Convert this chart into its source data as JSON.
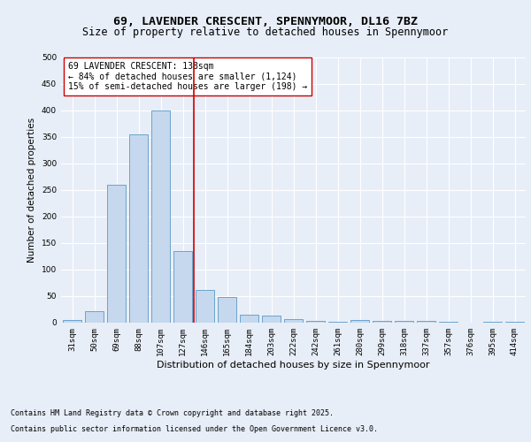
{
  "title_line1": "69, LAVENDER CRESCENT, SPENNYMOOR, DL16 7BZ",
  "title_line2": "Size of property relative to detached houses in Spennymoor",
  "xlabel": "Distribution of detached houses by size in Spennymoor",
  "ylabel": "Number of detached properties",
  "categories": [
    "31sqm",
    "50sqm",
    "69sqm",
    "88sqm",
    "107sqm",
    "127sqm",
    "146sqm",
    "165sqm",
    "184sqm",
    "203sqm",
    "222sqm",
    "242sqm",
    "261sqm",
    "280sqm",
    "299sqm",
    "318sqm",
    "337sqm",
    "357sqm",
    "376sqm",
    "395sqm",
    "414sqm"
  ],
  "values": [
    5,
    22,
    260,
    355,
    400,
    135,
    62,
    48,
    15,
    13,
    7,
    4,
    2,
    5,
    4,
    4,
    4,
    1,
    0,
    1,
    2
  ],
  "bar_color": "#c5d8ed",
  "bar_edge_color": "#5a9ac8",
  "vline_x": 5.5,
  "vline_color": "#cc0000",
  "annotation_text": "69 LAVENDER CRESCENT: 138sqm\n← 84% of detached houses are smaller (1,124)\n15% of semi-detached houses are larger (198) →",
  "annotation_box_color": "#ffffff",
  "annotation_box_edge": "#cc0000",
  "ylim": [
    0,
    500
  ],
  "yticks": [
    0,
    50,
    100,
    150,
    200,
    250,
    300,
    350,
    400,
    450,
    500
  ],
  "bg_color": "#e8eef7",
  "plot_bg_color": "#e8eef7",
  "footer_line1": "Contains HM Land Registry data © Crown copyright and database right 2025.",
  "footer_line2": "Contains public sector information licensed under the Open Government Licence v3.0.",
  "title_fontsize": 9.5,
  "subtitle_fontsize": 8.5,
  "xlabel_fontsize": 8,
  "ylabel_fontsize": 7.5,
  "tick_fontsize": 6.5,
  "annotation_fontsize": 7,
  "footer_fontsize": 6
}
